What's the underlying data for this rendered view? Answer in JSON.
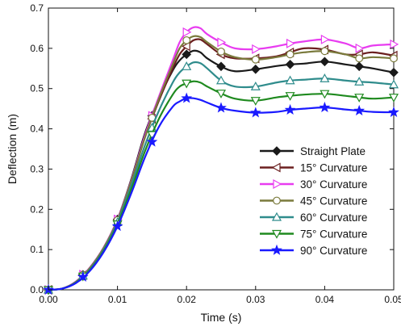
{
  "chart_data": {
    "type": "line",
    "title": "",
    "xlabel": "Time (s)",
    "ylabel": "Deflection (m)",
    "xlim": [
      0.0,
      0.05
    ],
    "ylim": [
      0.0,
      0.7
    ],
    "xticks": [
      "0.00",
      "0.01",
      "0.02",
      "0.03",
      "0.04",
      "0.05"
    ],
    "yticks": [
      "0.0",
      "0.1",
      "0.2",
      "0.3",
      "0.4",
      "0.5",
      "0.6",
      "0.7"
    ],
    "grid": false,
    "legend_position": "bottom-right",
    "series": [
      {
        "name": "Straight Plate",
        "color": "#1a1a1a",
        "marker": "diamond",
        "x": [
          0,
          0.002,
          0.004,
          0.006,
          0.008,
          0.01,
          0.012,
          0.014,
          0.016,
          0.018,
          0.019,
          0.02,
          0.021,
          0.022,
          0.023,
          0.025,
          0.027,
          0.03,
          0.033,
          0.035,
          0.037,
          0.04,
          0.043,
          0.045,
          0.047,
          0.05
        ],
        "y": [
          0.0,
          0.003,
          0.02,
          0.055,
          0.105,
          0.175,
          0.275,
          0.39,
          0.475,
          0.545,
          0.57,
          0.585,
          0.594,
          0.59,
          0.575,
          0.555,
          0.543,
          0.548,
          0.556,
          0.56,
          0.562,
          0.567,
          0.56,
          0.555,
          0.55,
          0.54
        ],
        "marker_x": [
          0,
          0.005,
          0.01,
          0.015,
          0.02,
          0.025,
          0.03,
          0.035,
          0.04,
          0.045,
          0.05
        ]
      },
      {
        "name": "15° Curvature",
        "color": "#6b1f1f",
        "marker": "triangle-left",
        "x": [
          0,
          0.002,
          0.004,
          0.006,
          0.008,
          0.01,
          0.012,
          0.014,
          0.016,
          0.018,
          0.019,
          0.02,
          0.021,
          0.022,
          0.023,
          0.025,
          0.027,
          0.03,
          0.033,
          0.035,
          0.037,
          0.04,
          0.043,
          0.045,
          0.047,
          0.05
        ],
        "y": [
          0.0,
          0.003,
          0.02,
          0.053,
          0.103,
          0.172,
          0.27,
          0.38,
          0.47,
          0.55,
          0.585,
          0.605,
          0.62,
          0.622,
          0.61,
          0.585,
          0.575,
          0.575,
          0.58,
          0.59,
          0.6,
          0.597,
          0.585,
          0.585,
          0.59,
          0.582
        ],
        "marker_x": [
          0,
          0.005,
          0.01,
          0.015,
          0.02,
          0.025,
          0.03,
          0.035,
          0.04,
          0.045,
          0.05
        ]
      },
      {
        "name": "30° Curvature",
        "color": "#e83cf0",
        "marker": "triangle-right",
        "x": [
          0,
          0.002,
          0.004,
          0.006,
          0.008,
          0.01,
          0.012,
          0.014,
          0.016,
          0.018,
          0.019,
          0.02,
          0.021,
          0.022,
          0.023,
          0.025,
          0.027,
          0.03,
          0.033,
          0.035,
          0.037,
          0.04,
          0.043,
          0.045,
          0.047,
          0.05
        ],
        "y": [
          0.0,
          0.003,
          0.021,
          0.055,
          0.105,
          0.175,
          0.272,
          0.385,
          0.48,
          0.57,
          0.615,
          0.64,
          0.652,
          0.65,
          0.635,
          0.615,
          0.6,
          0.598,
          0.605,
          0.612,
          0.617,
          0.622,
          0.612,
          0.6,
          0.607,
          0.61
        ],
        "marker_x": [
          0,
          0.005,
          0.01,
          0.015,
          0.02,
          0.025,
          0.03,
          0.035,
          0.04,
          0.045,
          0.05
        ]
      },
      {
        "name": "45° Curvature",
        "color": "#7a7a3c",
        "marker": "circle",
        "x": [
          0,
          0.002,
          0.004,
          0.006,
          0.008,
          0.01,
          0.012,
          0.014,
          0.016,
          0.018,
          0.019,
          0.02,
          0.021,
          0.022,
          0.023,
          0.025,
          0.027,
          0.03,
          0.033,
          0.035,
          0.037,
          0.04,
          0.043,
          0.045,
          0.047,
          0.05
        ],
        "y": [
          0.0,
          0.003,
          0.02,
          0.054,
          0.104,
          0.173,
          0.27,
          0.38,
          0.475,
          0.56,
          0.6,
          0.62,
          0.63,
          0.628,
          0.615,
          0.592,
          0.578,
          0.572,
          0.578,
          0.585,
          0.59,
          0.593,
          0.585,
          0.575,
          0.578,
          0.575
        ],
        "marker_x": [
          0,
          0.005,
          0.01,
          0.015,
          0.02,
          0.025,
          0.03,
          0.035,
          0.04,
          0.045,
          0.05
        ]
      },
      {
        "name": "60° Curvature",
        "color": "#2f8c8c",
        "marker": "triangle-up",
        "x": [
          0,
          0.002,
          0.004,
          0.006,
          0.008,
          0.01,
          0.012,
          0.014,
          0.016,
          0.018,
          0.019,
          0.02,
          0.021,
          0.022,
          0.023,
          0.025,
          0.027,
          0.03,
          0.033,
          0.035,
          0.037,
          0.04,
          0.043,
          0.045,
          0.047,
          0.05
        ],
        "y": [
          0.0,
          0.003,
          0.019,
          0.051,
          0.1,
          0.168,
          0.26,
          0.36,
          0.445,
          0.515,
          0.54,
          0.555,
          0.565,
          0.563,
          0.55,
          0.52,
          0.505,
          0.505,
          0.515,
          0.52,
          0.522,
          0.525,
          0.52,
          0.517,
          0.515,
          0.51
        ],
        "marker_x": [
          0,
          0.005,
          0.01,
          0.015,
          0.02,
          0.025,
          0.03,
          0.035,
          0.04,
          0.045,
          0.05
        ]
      },
      {
        "name": "75° Curvature",
        "color": "#1f8a1f",
        "marker": "triangle-down",
        "x": [
          0,
          0.002,
          0.004,
          0.006,
          0.008,
          0.01,
          0.012,
          0.014,
          0.016,
          0.018,
          0.019,
          0.02,
          0.021,
          0.022,
          0.023,
          0.025,
          0.027,
          0.03,
          0.033,
          0.035,
          0.037,
          0.04,
          0.043,
          0.045,
          0.047,
          0.05
        ],
        "y": [
          0.0,
          0.003,
          0.018,
          0.049,
          0.097,
          0.163,
          0.25,
          0.345,
          0.425,
          0.485,
          0.505,
          0.513,
          0.518,
          0.515,
          0.505,
          0.488,
          0.475,
          0.47,
          0.478,
          0.482,
          0.485,
          0.487,
          0.482,
          0.478,
          0.475,
          0.478
        ],
        "marker_x": [
          0,
          0.005,
          0.01,
          0.015,
          0.02,
          0.025,
          0.03,
          0.035,
          0.04,
          0.045,
          0.05
        ]
      },
      {
        "name": "90° Curvature",
        "color": "#1a1aff",
        "marker": "star",
        "x": [
          0,
          0.002,
          0.004,
          0.006,
          0.008,
          0.01,
          0.012,
          0.014,
          0.016,
          0.018,
          0.019,
          0.02,
          0.021,
          0.022,
          0.023,
          0.025,
          0.027,
          0.03,
          0.033,
          0.035,
          0.037,
          0.04,
          0.043,
          0.045,
          0.047,
          0.05
        ],
        "y": [
          0.0,
          0.003,
          0.017,
          0.047,
          0.094,
          0.158,
          0.24,
          0.33,
          0.405,
          0.455,
          0.468,
          0.476,
          0.476,
          0.472,
          0.465,
          0.452,
          0.445,
          0.44,
          0.442,
          0.447,
          0.45,
          0.453,
          0.448,
          0.445,
          0.442,
          0.441
        ],
        "marker_x": [
          0,
          0.005,
          0.01,
          0.015,
          0.02,
          0.025,
          0.03,
          0.035,
          0.04,
          0.045,
          0.05
        ]
      }
    ]
  }
}
